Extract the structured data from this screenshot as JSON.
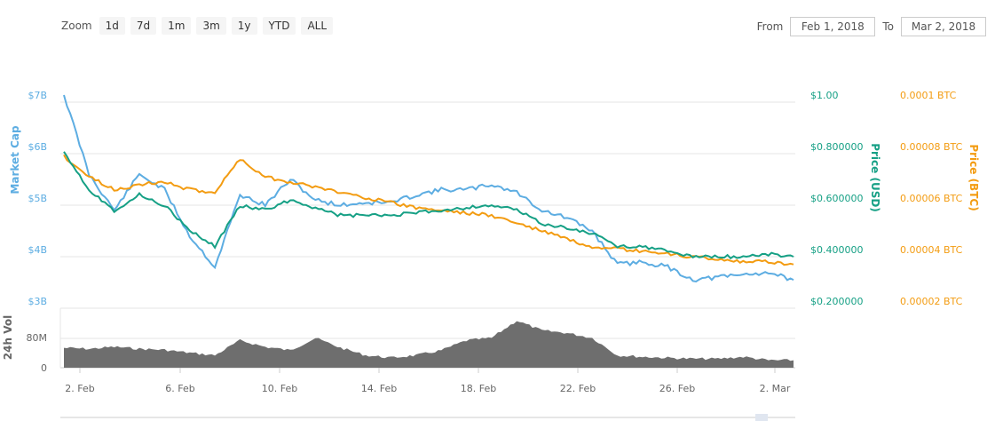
{
  "toolbar": {
    "zoom_label": "Zoom",
    "zoom_buttons": [
      "1d",
      "7d",
      "1m",
      "3m",
      "1y",
      "YTD",
      "ALL"
    ],
    "from_label": "From",
    "from_value": "Feb 1, 2018",
    "to_label": "To",
    "to_value": "Mar 2, 2018"
  },
  "colors": {
    "market_cap": "#5DADE2",
    "price_usd": "#16A085",
    "price_btc": "#F39C12",
    "volume": "#6E6E6E",
    "grid": "#E6E6E6"
  },
  "chart_data": {
    "type": "line",
    "title": "",
    "x_ticks": [
      "2. Feb",
      "6. Feb",
      "10. Feb",
      "14. Feb",
      "18. Feb",
      "22. Feb",
      "26. Feb",
      "2. Mar"
    ],
    "x": [
      "Feb 1",
      "Feb 2",
      "Feb 3",
      "Feb 4",
      "Feb 5",
      "Feb 6",
      "Feb 7",
      "Feb 8",
      "Feb 9",
      "Feb 10",
      "Feb 11",
      "Feb 12",
      "Feb 13",
      "Feb 14",
      "Feb 15",
      "Feb 16",
      "Feb 17",
      "Feb 18",
      "Feb 19",
      "Feb 20",
      "Feb 21",
      "Feb 22",
      "Feb 23",
      "Feb 24",
      "Feb 25",
      "Feb 26",
      "Feb 27",
      "Feb 28",
      "Mar 1",
      "Mar 2"
    ],
    "axes": {
      "market_cap": {
        "label": "Market Cap",
        "ticks": [
          "$7B",
          "$6B",
          "$5B",
          "$4B",
          "$3B"
        ],
        "range": [
          3,
          7.2
        ]
      },
      "price_usd": {
        "label": "Price (USD)",
        "ticks": [
          "$1.00",
          "$0.800000",
          "$0.600000",
          "$0.400000",
          "$0.200000"
        ],
        "range": [
          0.2,
          1.0
        ]
      },
      "price_btc": {
        "label": "Price (BTC)",
        "ticks": [
          "0.0001 BTC",
          "0.00008 BTC",
          "0.00006 BTC",
          "0.00004 BTC",
          "0.00002 BTC"
        ],
        "range": [
          2e-05,
          0.0001
        ]
      },
      "volume": {
        "label": "24h Vol",
        "ticks": [
          "80M",
          "0"
        ],
        "range": [
          0,
          120
        ]
      }
    },
    "series": [
      {
        "name": "Market Cap",
        "unit": "B USD",
        "values": [
          7.15,
          5.6,
          4.9,
          5.6,
          5.3,
          4.4,
          3.8,
          5.2,
          5.0,
          5.5,
          5.1,
          5.0,
          5.05,
          5.05,
          5.2,
          5.3,
          5.3,
          5.4,
          5.25,
          4.9,
          4.75,
          4.5,
          3.85,
          3.9,
          3.8,
          3.55,
          3.6,
          3.65,
          3.7,
          3.55
        ]
      },
      {
        "name": "Price (USD)",
        "unit": "USD",
        "values": [
          0.81,
          0.66,
          0.58,
          0.64,
          0.6,
          0.5,
          0.44,
          0.6,
          0.58,
          0.62,
          0.59,
          0.56,
          0.56,
          0.56,
          0.57,
          0.58,
          0.59,
          0.6,
          0.58,
          0.53,
          0.51,
          0.49,
          0.44,
          0.44,
          0.42,
          0.4,
          0.4,
          0.4,
          0.41,
          0.4
        ]
      },
      {
        "name": "Price (BTC)",
        "unit": "BTC",
        "values": [
          7.9e-05,
          7.1e-05,
          6.6e-05,
          6.8e-05,
          6.9e-05,
          6.6e-05,
          6.5e-05,
          7.8e-05,
          7.1e-05,
          6.9e-05,
          6.7e-05,
          6.5e-05,
          6.3e-05,
          6.1e-05,
          5.9e-05,
          5.8e-05,
          5.7e-05,
          5.6e-05,
          5.3e-05,
          5e-05,
          4.7e-05,
          4.3e-05,
          4.3e-05,
          4.2e-05,
          4.1e-05,
          4e-05,
          3.9e-05,
          3.8e-05,
          3.8e-05,
          3.7e-05
        ]
      },
      {
        "name": "24h Vol",
        "unit": "M USD",
        "values": [
          40,
          38,
          42,
          38,
          36,
          30,
          25,
          55,
          42,
          35,
          60,
          40,
          25,
          20,
          25,
          35,
          55,
          60,
          95,
          75,
          70,
          60,
          25,
          22,
          20,
          18,
          18,
          22,
          15,
          15
        ]
      }
    ],
    "grid": true,
    "legend": "none"
  }
}
